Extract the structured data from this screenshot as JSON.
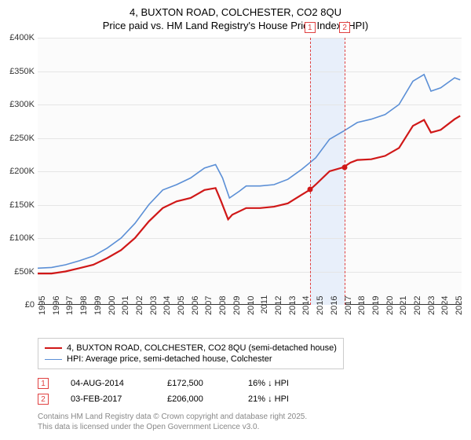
{
  "title_line1": "4, BUXTON ROAD, COLCHESTER, CO2 8QU",
  "title_line2": "Price paid vs. HM Land Registry's House Price Index (HPI)",
  "chart": {
    "type": "line",
    "background_color": "#fbfbfb",
    "grid_color": "#e5e5e5",
    "ylim": [
      0,
      400000
    ],
    "ytick_step": 50000,
    "yticks": [
      "£0",
      "£50K",
      "£100K",
      "£150K",
      "£200K",
      "£250K",
      "£300K",
      "£350K",
      "£400K"
    ],
    "xlim": [
      1995,
      2025.5
    ],
    "xticks": [
      1995,
      1996,
      1997,
      1998,
      1999,
      2000,
      2001,
      2002,
      2003,
      2004,
      2005,
      2006,
      2007,
      2008,
      2009,
      2010,
      2011,
      2012,
      2013,
      2014,
      2015,
      2016,
      2017,
      2018,
      2019,
      2020,
      2021,
      2022,
      2023,
      2024,
      2025
    ],
    "series": [
      {
        "name": "price_paid",
        "color": "#d01818",
        "width": 2.2,
        "label": "4, BUXTON ROAD, COLCHESTER, CO2 8QU (semi-detached house)",
        "points": [
          [
            1995,
            47000
          ],
          [
            1996,
            47000
          ],
          [
            1997,
            50000
          ],
          [
            1998,
            55000
          ],
          [
            1999,
            60000
          ],
          [
            2000,
            70000
          ],
          [
            2001,
            82000
          ],
          [
            2002,
            100000
          ],
          [
            2003,
            125000
          ],
          [
            2004,
            145000
          ],
          [
            2005,
            155000
          ],
          [
            2006,
            160000
          ],
          [
            2007,
            172000
          ],
          [
            2007.8,
            175000
          ],
          [
            2008.2,
            155000
          ],
          [
            2008.7,
            128000
          ],
          [
            2009,
            135000
          ],
          [
            2010,
            145000
          ],
          [
            2011,
            145000
          ],
          [
            2012,
            147000
          ],
          [
            2013,
            152000
          ],
          [
            2014,
            165000
          ],
          [
            2014.6,
            172500
          ],
          [
            2015,
            180000
          ],
          [
            2016,
            200000
          ],
          [
            2017,
            206000
          ],
          [
            2017.5,
            213000
          ],
          [
            2018,
            217000
          ],
          [
            2019,
            218000
          ],
          [
            2020,
            223000
          ],
          [
            2021,
            235000
          ],
          [
            2022,
            268000
          ],
          [
            2022.8,
            277000
          ],
          [
            2023.3,
            258000
          ],
          [
            2024,
            262000
          ],
          [
            2025,
            278000
          ],
          [
            2025.4,
            283000
          ]
        ]
      },
      {
        "name": "hpi",
        "color": "#5b8fd6",
        "width": 1.6,
        "label": "HPI: Average price, semi-detached house, Colchester",
        "points": [
          [
            1995,
            55000
          ],
          [
            1996,
            56000
          ],
          [
            1997,
            60000
          ],
          [
            1998,
            66000
          ],
          [
            1999,
            73000
          ],
          [
            2000,
            85000
          ],
          [
            2001,
            100000
          ],
          [
            2002,
            122000
          ],
          [
            2003,
            150000
          ],
          [
            2004,
            172000
          ],
          [
            2005,
            180000
          ],
          [
            2006,
            190000
          ],
          [
            2007,
            205000
          ],
          [
            2007.8,
            210000
          ],
          [
            2008.3,
            190000
          ],
          [
            2008.8,
            160000
          ],
          [
            2009.5,
            170000
          ],
          [
            2010,
            178000
          ],
          [
            2011,
            178000
          ],
          [
            2012,
            180000
          ],
          [
            2013,
            188000
          ],
          [
            2014,
            203000
          ],
          [
            2015,
            220000
          ],
          [
            2016,
            248000
          ],
          [
            2017,
            260000
          ],
          [
            2018,
            273000
          ],
          [
            2019,
            278000
          ],
          [
            2020,
            285000
          ],
          [
            2021,
            300000
          ],
          [
            2022,
            335000
          ],
          [
            2022.8,
            345000
          ],
          [
            2023.3,
            320000
          ],
          [
            2024,
            325000
          ],
          [
            2025,
            340000
          ],
          [
            2025.4,
            337000
          ]
        ]
      }
    ],
    "markers": {
      "band": {
        "from": 2014.59,
        "to": 2017.09,
        "color": "#e8effa"
      },
      "lines": [
        {
          "num": "1",
          "x": 2014.59,
          "color": "#e04040"
        },
        {
          "num": "2",
          "x": 2017.09,
          "color": "#e04040"
        }
      ],
      "dots": [
        {
          "x": 2014.59,
          "y": 172500,
          "color": "#d01818"
        },
        {
          "x": 2017.09,
          "y": 206000,
          "color": "#d01818"
        }
      ]
    }
  },
  "sales": [
    {
      "num": "1",
      "date": "04-AUG-2014",
      "price": "£172,500",
      "delta": "16% ↓ HPI"
    },
    {
      "num": "2",
      "date": "03-FEB-2017",
      "price": "£206,000",
      "delta": "21% ↓ HPI"
    }
  ],
  "footer_line1": "Contains HM Land Registry data © Crown copyright and database right 2025.",
  "footer_line2": "This data is licensed under the Open Government Licence v3.0."
}
